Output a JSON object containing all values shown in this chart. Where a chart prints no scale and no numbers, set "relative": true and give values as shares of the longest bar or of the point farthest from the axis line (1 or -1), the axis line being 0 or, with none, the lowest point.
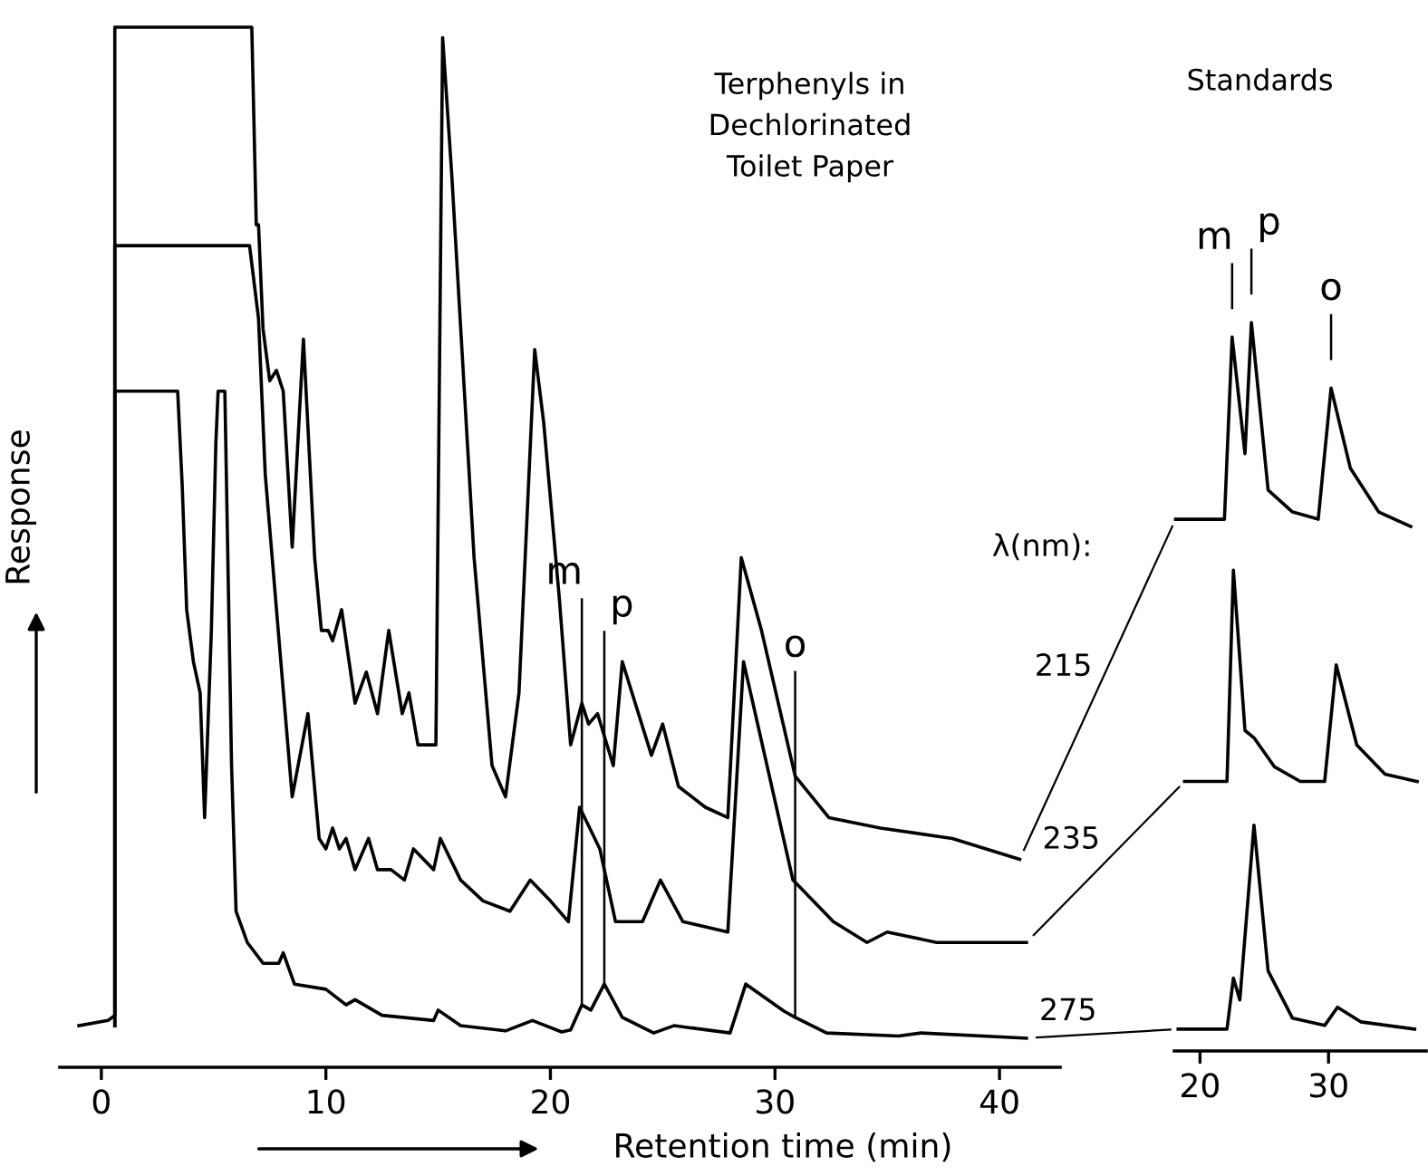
{
  "chart_data": [
    {
      "type": "line",
      "title": "Terphenyls in\nDechlorinated\nToilet Paper",
      "xlabel": "Retention time (min)",
      "ylabel": "Response",
      "legend_title": "λ(nm):",
      "relative": true,
      "marker": "none",
      "line_style": "solid",
      "grid": false,
      "legend": false,
      "xlim": [
        -1.85,
        42.7
      ],
      "xticks": [
        0,
        10,
        20,
        30,
        40
      ],
      "series": [
        {
          "name": "215",
          "color": "#000000",
          "x": [
            0.6,
            0.6,
            6.7,
            6.9,
            7.0,
            7.2,
            7.5,
            7.8,
            8.1,
            8.5,
            9.0,
            9.5,
            9.8,
            10.1,
            10.3,
            10.7,
            11.3,
            11.8,
            12.3,
            12.8,
            13.4,
            13.7,
            14.1,
            14.9,
            15.2,
            15.6,
            16.6,
            17.4,
            18.0,
            18.6,
            19.3,
            19.7,
            20.4,
            20.9,
            21.4,
            21.7,
            22.1,
            22.8,
            23.2,
            24.5,
            25.0,
            25.7,
            26.9,
            27.9,
            28.5,
            29.4,
            30.9,
            32.4,
            34.7,
            37.9,
            40.9
          ],
          "values": [
            0.04,
            1.0,
            1.0,
            0.81,
            0.81,
            0.71,
            0.66,
            0.67,
            0.65,
            0.5,
            0.7,
            0.49,
            0.42,
            0.42,
            0.41,
            0.44,
            0.35,
            0.38,
            0.34,
            0.42,
            0.34,
            0.36,
            0.31,
            0.31,
            0.99,
            0.86,
            0.49,
            0.29,
            0.26,
            0.36,
            0.69,
            0.62,
            0.45,
            0.31,
            0.35,
            0.33,
            0.34,
            0.29,
            0.39,
            0.3,
            0.33,
            0.27,
            0.25,
            0.24,
            0.49,
            0.42,
            0.28,
            0.24,
            0.23,
            0.22,
            0.2
          ]
        },
        {
          "name": "235",
          "color": "#000000",
          "x": [
            0.6,
            0.6,
            6.6,
            7.0,
            7.3,
            7.8,
            8.5,
            9.2,
            9.7,
            10.0,
            10.3,
            10.6,
            10.9,
            11.3,
            11.9,
            12.3,
            12.9,
            13.5,
            13.9,
            14.8,
            15.1,
            16.0,
            17.0,
            18.2,
            19.1,
            20.0,
            20.8,
            21.3,
            22.2,
            22.9,
            24.1,
            24.9,
            25.9,
            27.9,
            28.6,
            30.8,
            32.6,
            34.1,
            35.0,
            37.2,
            41.2
          ],
          "values": [
            0.04,
            0.79,
            0.79,
            0.72,
            0.57,
            0.44,
            0.26,
            0.34,
            0.22,
            0.21,
            0.23,
            0.21,
            0.22,
            0.19,
            0.22,
            0.19,
            0.19,
            0.18,
            0.21,
            0.19,
            0.22,
            0.18,
            0.16,
            0.15,
            0.18,
            0.16,
            0.14,
            0.25,
            0.21,
            0.14,
            0.14,
            0.18,
            0.14,
            0.13,
            0.39,
            0.18,
            0.14,
            0.12,
            0.13,
            0.12,
            0.12
          ]
        },
        {
          "name": "275",
          "color": "#000000",
          "x": [
            -1.0,
            0.3,
            0.6,
            0.6,
            3.4,
            3.6,
            3.8,
            4.1,
            4.4,
            4.6,
            4.9,
            5.1,
            5.2,
            5.5,
            5.8,
            6.0,
            6.5,
            7.2,
            7.9,
            8.1,
            8.6,
            10.0,
            10.9,
            11.3,
            12.5,
            14.8,
            15.0,
            16.0,
            18.0,
            19.2,
            20.5,
            20.9,
            21.4,
            21.8,
            22.4,
            23.2,
            24.6,
            25.5,
            28.0,
            28.7,
            30.4,
            30.9,
            32.3,
            35.5,
            36.5,
            41.2
          ],
          "values": [
            0.04,
            0.045,
            0.05,
            0.65,
            0.65,
            0.56,
            0.44,
            0.39,
            0.36,
            0.24,
            0.42,
            0.6,
            0.65,
            0.65,
            0.29,
            0.15,
            0.12,
            0.1,
            0.1,
            0.11,
            0.08,
            0.075,
            0.06,
            0.065,
            0.05,
            0.045,
            0.055,
            0.04,
            0.035,
            0.045,
            0.034,
            0.036,
            0.06,
            0.055,
            0.08,
            0.048,
            0.033,
            0.04,
            0.033,
            0.08,
            0.054,
            0.048,
            0.033,
            0.03,
            0.033,
            0.028
          ]
        }
      ],
      "annotations": [
        {
          "text": "m",
          "x": 21.4,
          "y": 0.06
        },
        {
          "text": "p",
          "x": 22.4,
          "y": 0.08
        },
        {
          "text": "o",
          "x": 30.9,
          "y": 0.048
        }
      ]
    },
    {
      "type": "line",
      "title": "Standards",
      "relative": true,
      "marker": "none",
      "line_style": "solid",
      "grid": false,
      "legend": false,
      "xlim": [
        18.0,
        37.6
      ],
      "xticks": [
        20,
        30
      ],
      "series": [
        {
          "color": "#000000",
          "x": [
            18.1,
            21.9,
            22.5,
            23.5,
            24.0,
            25.3,
            27.2,
            29.2,
            30.2,
            31.7,
            33.9,
            36.4
          ],
          "values": [
            0.73,
            0.73,
            0.98,
            0.82,
            1.0,
            0.77,
            0.74,
            0.73,
            0.91,
            0.8,
            0.74,
            0.72
          ]
        },
        {
          "color": "#000000",
          "x": [
            18.8,
            22.1,
            22.6,
            23.5,
            24.2,
            25.8,
            27.8,
            29.7,
            30.6,
            32.2,
            34.4,
            36.9
          ],
          "values": [
            0.37,
            0.37,
            0.66,
            0.44,
            0.43,
            0.39,
            0.37,
            0.37,
            0.53,
            0.42,
            0.38,
            0.37
          ]
        },
        {
          "color": "#000000",
          "x": [
            18.3,
            22.1,
            22.6,
            23.1,
            24.2,
            25.3,
            27.2,
            29.7,
            30.7,
            32.5,
            36.7
          ],
          "values": [
            0.03,
            0.03,
            0.1,
            0.07,
            0.31,
            0.11,
            0.045,
            0.035,
            0.06,
            0.04,
            0.03
          ]
        }
      ],
      "annotations": [
        {
          "text": "m",
          "x": 22.5,
          "y": 0.98
        },
        {
          "text": "p",
          "x": 24.0,
          "y": 1.0
        },
        {
          "text": "o",
          "x": 30.2,
          "y": 0.91
        }
      ]
    }
  ]
}
